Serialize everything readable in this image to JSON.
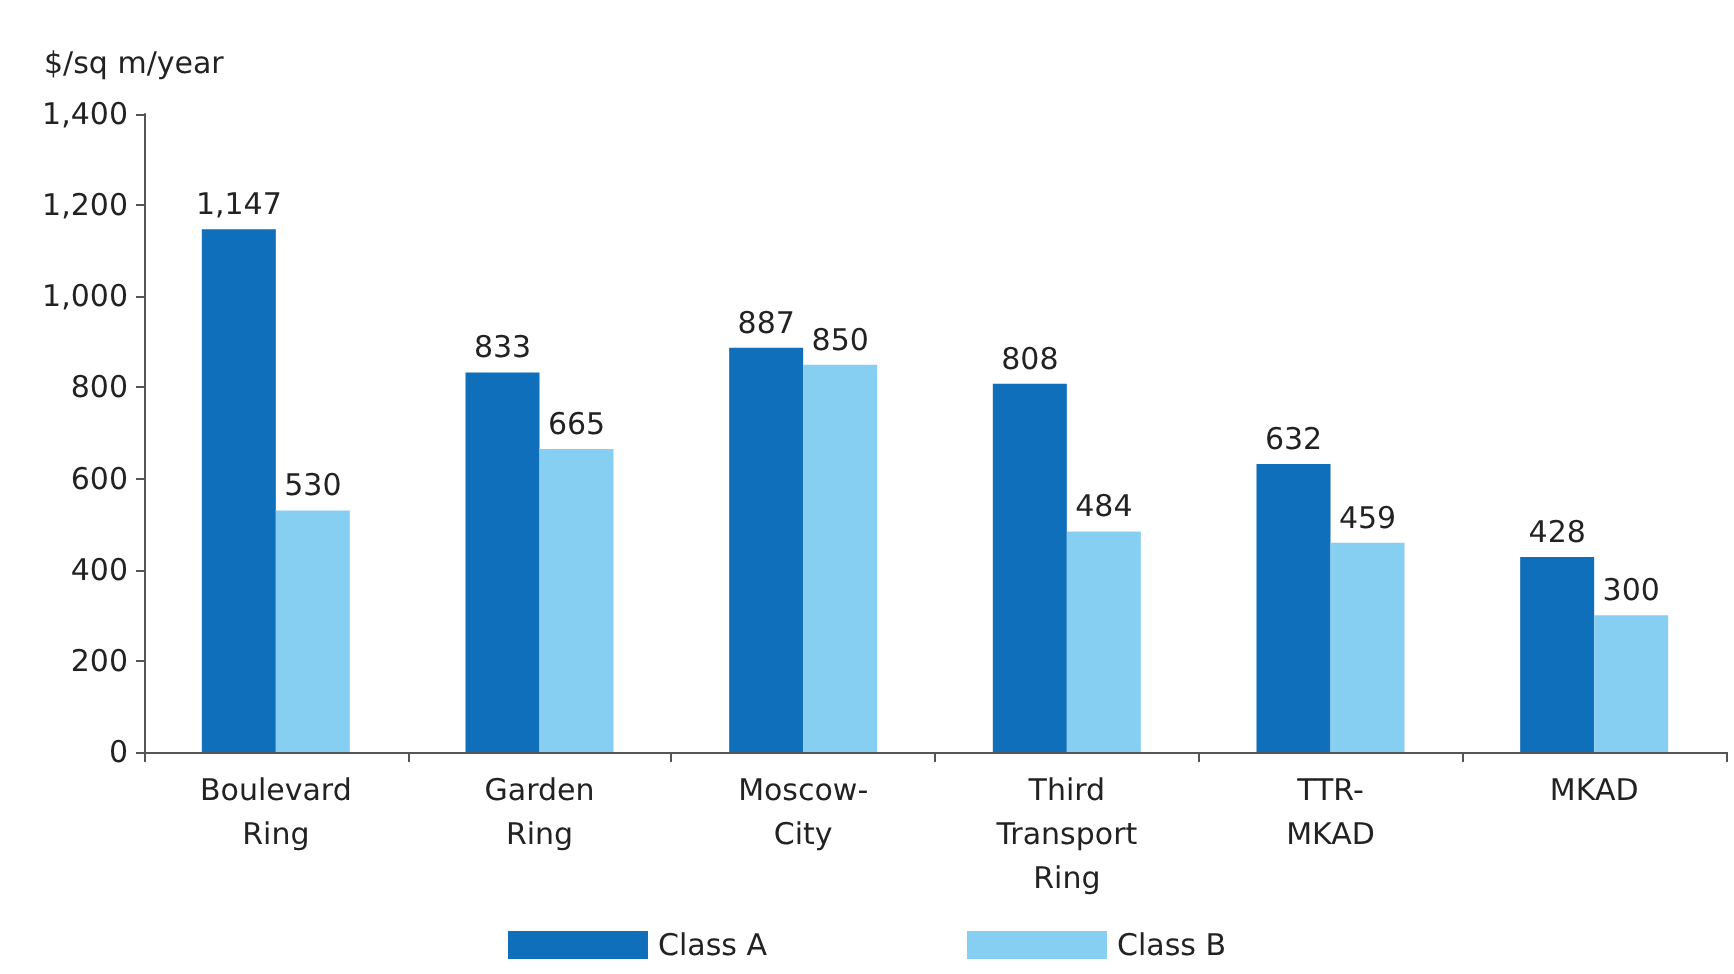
{
  "chart_data": {
    "type": "bar",
    "ylabel": "$/sq m/year",
    "categories": [
      "Boulevard\nRing",
      "Garden\nRing",
      "Moscow-\nCity",
      "Third\nTransport\nRing",
      "TTR-\nMKAD",
      "MKAD"
    ],
    "series": [
      {
        "name": "Class A",
        "color": "#0f6fba",
        "values": [
          1147,
          833,
          887,
          808,
          632,
          428
        ],
        "value_labels": [
          "1,147",
          "833",
          "887",
          "808",
          "632",
          "428"
        ]
      },
      {
        "name": "Class B",
        "color": "#87cff2",
        "values": [
          530,
          665,
          850,
          484,
          459,
          300
        ],
        "value_labels": [
          "530",
          "665",
          "850",
          "484",
          "459",
          "300"
        ]
      }
    ],
    "ylim": [
      0,
      1400
    ],
    "yticks": [
      0,
      200,
      400,
      600,
      800,
      {
        "value": 1000,
        "label": "1,000"
      },
      {
        "value": 1200,
        "label": "1,200"
      },
      {
        "value": 1400,
        "label": "1,400"
      }
    ],
    "grid": false,
    "legend": "bottom"
  }
}
